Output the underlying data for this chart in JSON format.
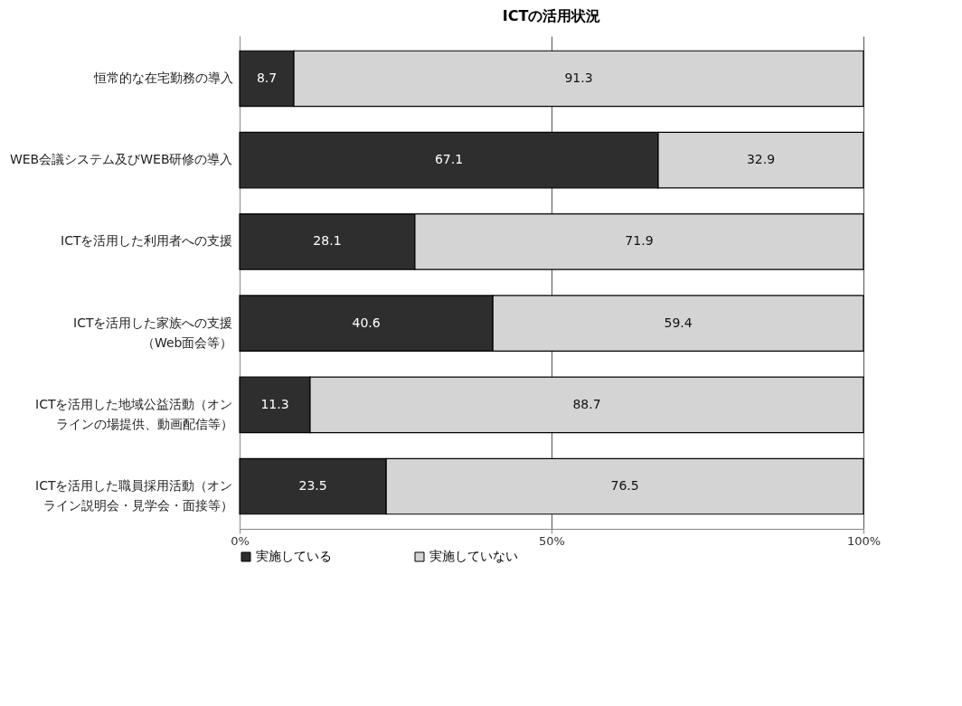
{
  "chart_data": {
    "type": "bar",
    "orientation": "horizontal",
    "stacked": true,
    "title": "ICTの活用状況",
    "categories": [
      "恒常的な在宅勤務の導入",
      "WEB会議システム及びWEB研修の導入",
      "ICTを活用した利用者への支援",
      "ICTを活用した家族への支援（Web面会等）",
      "ICTを活用した地域公益活動（オンラインの場提供、動画配信等）",
      "ICTを活用した職員採用活動（オンライン説明会・見学会・面接等）"
    ],
    "series": [
      {
        "name": "実施している",
        "color": "#2e2e2e",
        "values": [
          8.7,
          67.1,
          28.1,
          40.6,
          11.3,
          23.5
        ]
      },
      {
        "name": "実施していない",
        "color": "#d4d4d4",
        "values": [
          91.3,
          32.9,
          71.9,
          59.4,
          88.7,
          76.5
        ]
      }
    ],
    "xlim": [
      0,
      100
    ],
    "xticks": [
      {
        "value": 0,
        "label": "0%"
      },
      {
        "value": 50,
        "label": "50%"
      },
      {
        "value": 100,
        "label": "100%"
      }
    ],
    "grid": "x",
    "legend": "bottom",
    "data_labels": true
  }
}
